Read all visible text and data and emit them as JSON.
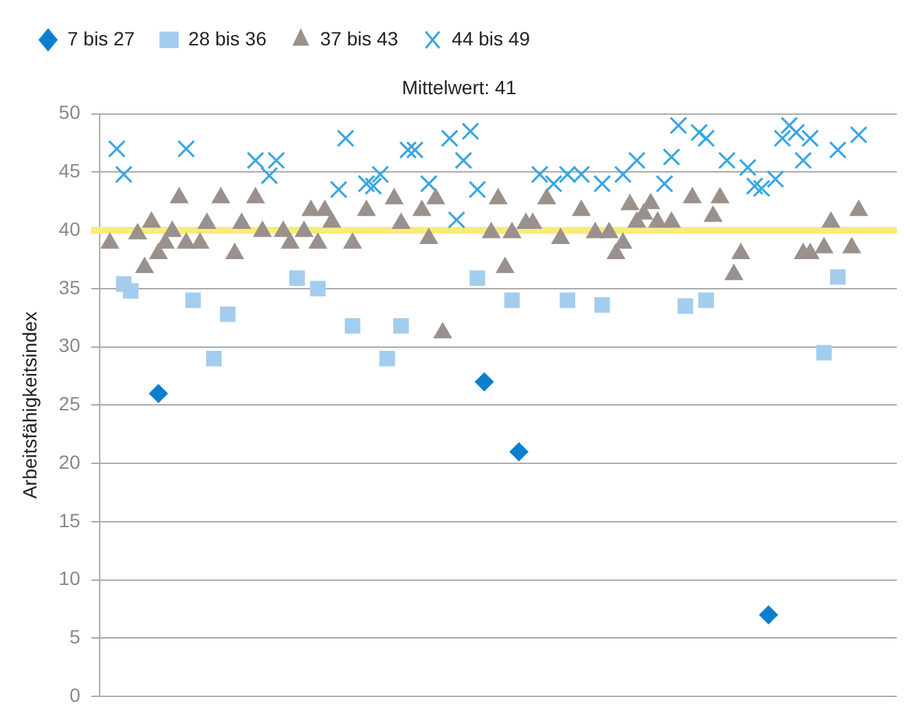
{
  "chart_data": {
    "type": "scatter",
    "title": "Mittelwert: 41",
    "ylabel": "Arbeitsfähigkeitsindex",
    "categories": [
      null,
      null,
      null,
      null,
      null,
      null,
      null,
      null,
      null,
      null,
      null,
      null,
      null,
      null,
      null,
      null,
      null,
      null,
      null,
      null,
      null,
      null,
      null,
      null,
      null,
      null,
      null,
      null,
      null,
      null,
      null,
      null,
      null,
      null,
      null,
      null,
      null,
      null,
      null,
      null,
      null,
      null,
      null,
      null,
      null,
      null,
      null,
      null,
      null,
      null,
      null,
      null,
      null,
      null,
      null,
      null,
      null,
      null,
      null,
      null,
      null,
      null,
      null,
      null,
      null,
      null,
      null,
      null,
      null,
      null,
      null,
      null,
      null,
      null,
      null,
      null,
      null,
      null,
      null,
      null,
      null,
      null,
      null,
      null,
      null,
      null,
      null,
      null,
      null,
      null,
      null,
      null,
      null,
      null,
      null,
      null,
      null,
      null,
      null,
      null,
      null,
      null,
      null,
      null,
      null,
      null,
      null,
      null,
      null,
      null,
      null,
      null,
      null,
      null,
      null
    ],
    "series": [
      {
        "name": "7 bis 27",
        "color": "#0a7fcf",
        "marker": "diamond",
        "values": [
          null,
          null,
          null,
          null,
          null,
          null,
          null,
          null,
          26,
          null,
          null,
          null,
          null,
          null,
          null,
          null,
          null,
          null,
          null,
          null,
          null,
          null,
          null,
          null,
          null,
          null,
          null,
          null,
          null,
          null,
          null,
          null,
          null,
          null,
          null,
          null,
          null,
          null,
          null,
          null,
          null,
          null,
          null,
          null,
          null,
          null,
          null,
          null,
          null,
          null,
          null,
          null,
          null,
          null,
          null,
          27,
          null,
          null,
          null,
          null,
          21,
          null,
          null,
          null,
          null,
          null,
          null,
          null,
          null,
          null,
          null,
          null,
          null,
          null,
          null,
          null,
          null,
          null,
          null,
          null,
          null,
          null,
          null,
          null,
          null,
          null,
          null,
          null,
          null,
          null,
          null,
          null,
          null,
          null,
          null,
          null,
          7,
          null,
          null,
          null,
          null,
          null,
          null,
          null,
          null,
          null,
          null,
          null,
          null,
          null,
          null,
          null,
          null,
          null,
          null
        ]
      },
      {
        "name": "28 bis 36",
        "color": "#a3cdee",
        "marker": "square",
        "values": [
          null,
          null,
          null,
          35.4,
          34.8,
          null,
          null,
          null,
          null,
          null,
          null,
          null,
          null,
          34,
          null,
          null,
          29,
          null,
          32.8,
          null,
          null,
          null,
          null,
          null,
          null,
          null,
          null,
          null,
          35.9,
          null,
          null,
          35,
          null,
          null,
          null,
          null,
          31.8,
          null,
          null,
          null,
          null,
          29,
          null,
          31.8,
          null,
          null,
          null,
          null,
          null,
          null,
          null,
          null,
          null,
          null,
          35.9,
          null,
          null,
          null,
          null,
          34,
          null,
          null,
          null,
          null,
          null,
          null,
          null,
          34,
          null,
          null,
          null,
          null,
          33.6,
          null,
          null,
          null,
          null,
          null,
          null,
          null,
          null,
          null,
          null,
          null,
          33.5,
          null,
          null,
          34,
          null,
          null,
          null,
          null,
          null,
          null,
          null,
          null,
          null,
          null,
          null,
          null,
          null,
          null,
          null,
          null,
          29.5,
          null,
          36,
          null,
          null,
          null,
          null,
          null,
          null,
          null,
          null
        ]
      },
      {
        "name": "37 bis 43",
        "color": "#9a918c",
        "marker": "triangle",
        "values": [
          null,
          38.9,
          null,
          null,
          null,
          39.7,
          36.8,
          40.7,
          38,
          38.9,
          39.9,
          42.8,
          38.9,
          null,
          38.9,
          40.6,
          null,
          42.8,
          null,
          38,
          40.6,
          null,
          42.8,
          39.9,
          null,
          null,
          39.9,
          38.9,
          null,
          39.9,
          41.7,
          38.9,
          41.7,
          40.7,
          null,
          null,
          38.9,
          null,
          41.7,
          null,
          null,
          null,
          42.7,
          40.6,
          null,
          null,
          41.7,
          39.3,
          42.7,
          31.2,
          null,
          null,
          null,
          null,
          null,
          null,
          39.8,
          42.7,
          36.8,
          39.8,
          null,
          40.6,
          40.6,
          null,
          42.7,
          null,
          39.3,
          null,
          null,
          41.7,
          null,
          39.8,
          null,
          39.8,
          38,
          38.9,
          42.2,
          40.7,
          41.4,
          42.3,
          40.7,
          null,
          40.7,
          null,
          null,
          42.8,
          null,
          null,
          41.2,
          42.8,
          null,
          36.2,
          38,
          null,
          null,
          null,
          null,
          null,
          null,
          null,
          null,
          38,
          38,
          null,
          38.5,
          40.7,
          null,
          null,
          38.5,
          41.7,
          null,
          null,
          null,
          null,
          null
        ]
      },
      {
        "name": "44 bis 49",
        "color": "#3aa6e0",
        "marker": "cross",
        "values": [
          null,
          null,
          47,
          44.8,
          null,
          null,
          null,
          null,
          null,
          null,
          null,
          null,
          47,
          null,
          null,
          null,
          null,
          null,
          null,
          null,
          null,
          null,
          46,
          null,
          44.7,
          46,
          null,
          null,
          null,
          null,
          null,
          null,
          null,
          null,
          43.5,
          47.9,
          null,
          null,
          44,
          43.8,
          44.8,
          null,
          null,
          null,
          46.9,
          46.9,
          null,
          44,
          null,
          null,
          47.9,
          40.9,
          46,
          48.5,
          43.5,
          null,
          null,
          null,
          null,
          null,
          null,
          null,
          null,
          44.8,
          null,
          44,
          null,
          44.8,
          null,
          44.8,
          null,
          null,
          44,
          null,
          null,
          44.8,
          null,
          46,
          null,
          null,
          null,
          44,
          46.3,
          49,
          null,
          null,
          48.4,
          47.9,
          null,
          null,
          46,
          null,
          null,
          45.4,
          43.8,
          43.6,
          null,
          44.4,
          47.9,
          49,
          48.4,
          46,
          47.9,
          null,
          null,
          null,
          46.9,
          null,
          null,
          48.2,
          null,
          null,
          null,
          null,
          null
        ]
      }
    ],
    "ylim": [
      0,
      50
    ],
    "yticks": [
      0,
      5,
      10,
      15,
      20,
      25,
      30,
      35,
      40,
      45,
      50
    ],
    "grid": "y",
    "legend": "top left",
    "tick_labels": "y",
    "ref_lines": [
      {
        "axis": "y",
        "value": 40,
        "color": "#f8ec7a"
      }
    ]
  }
}
